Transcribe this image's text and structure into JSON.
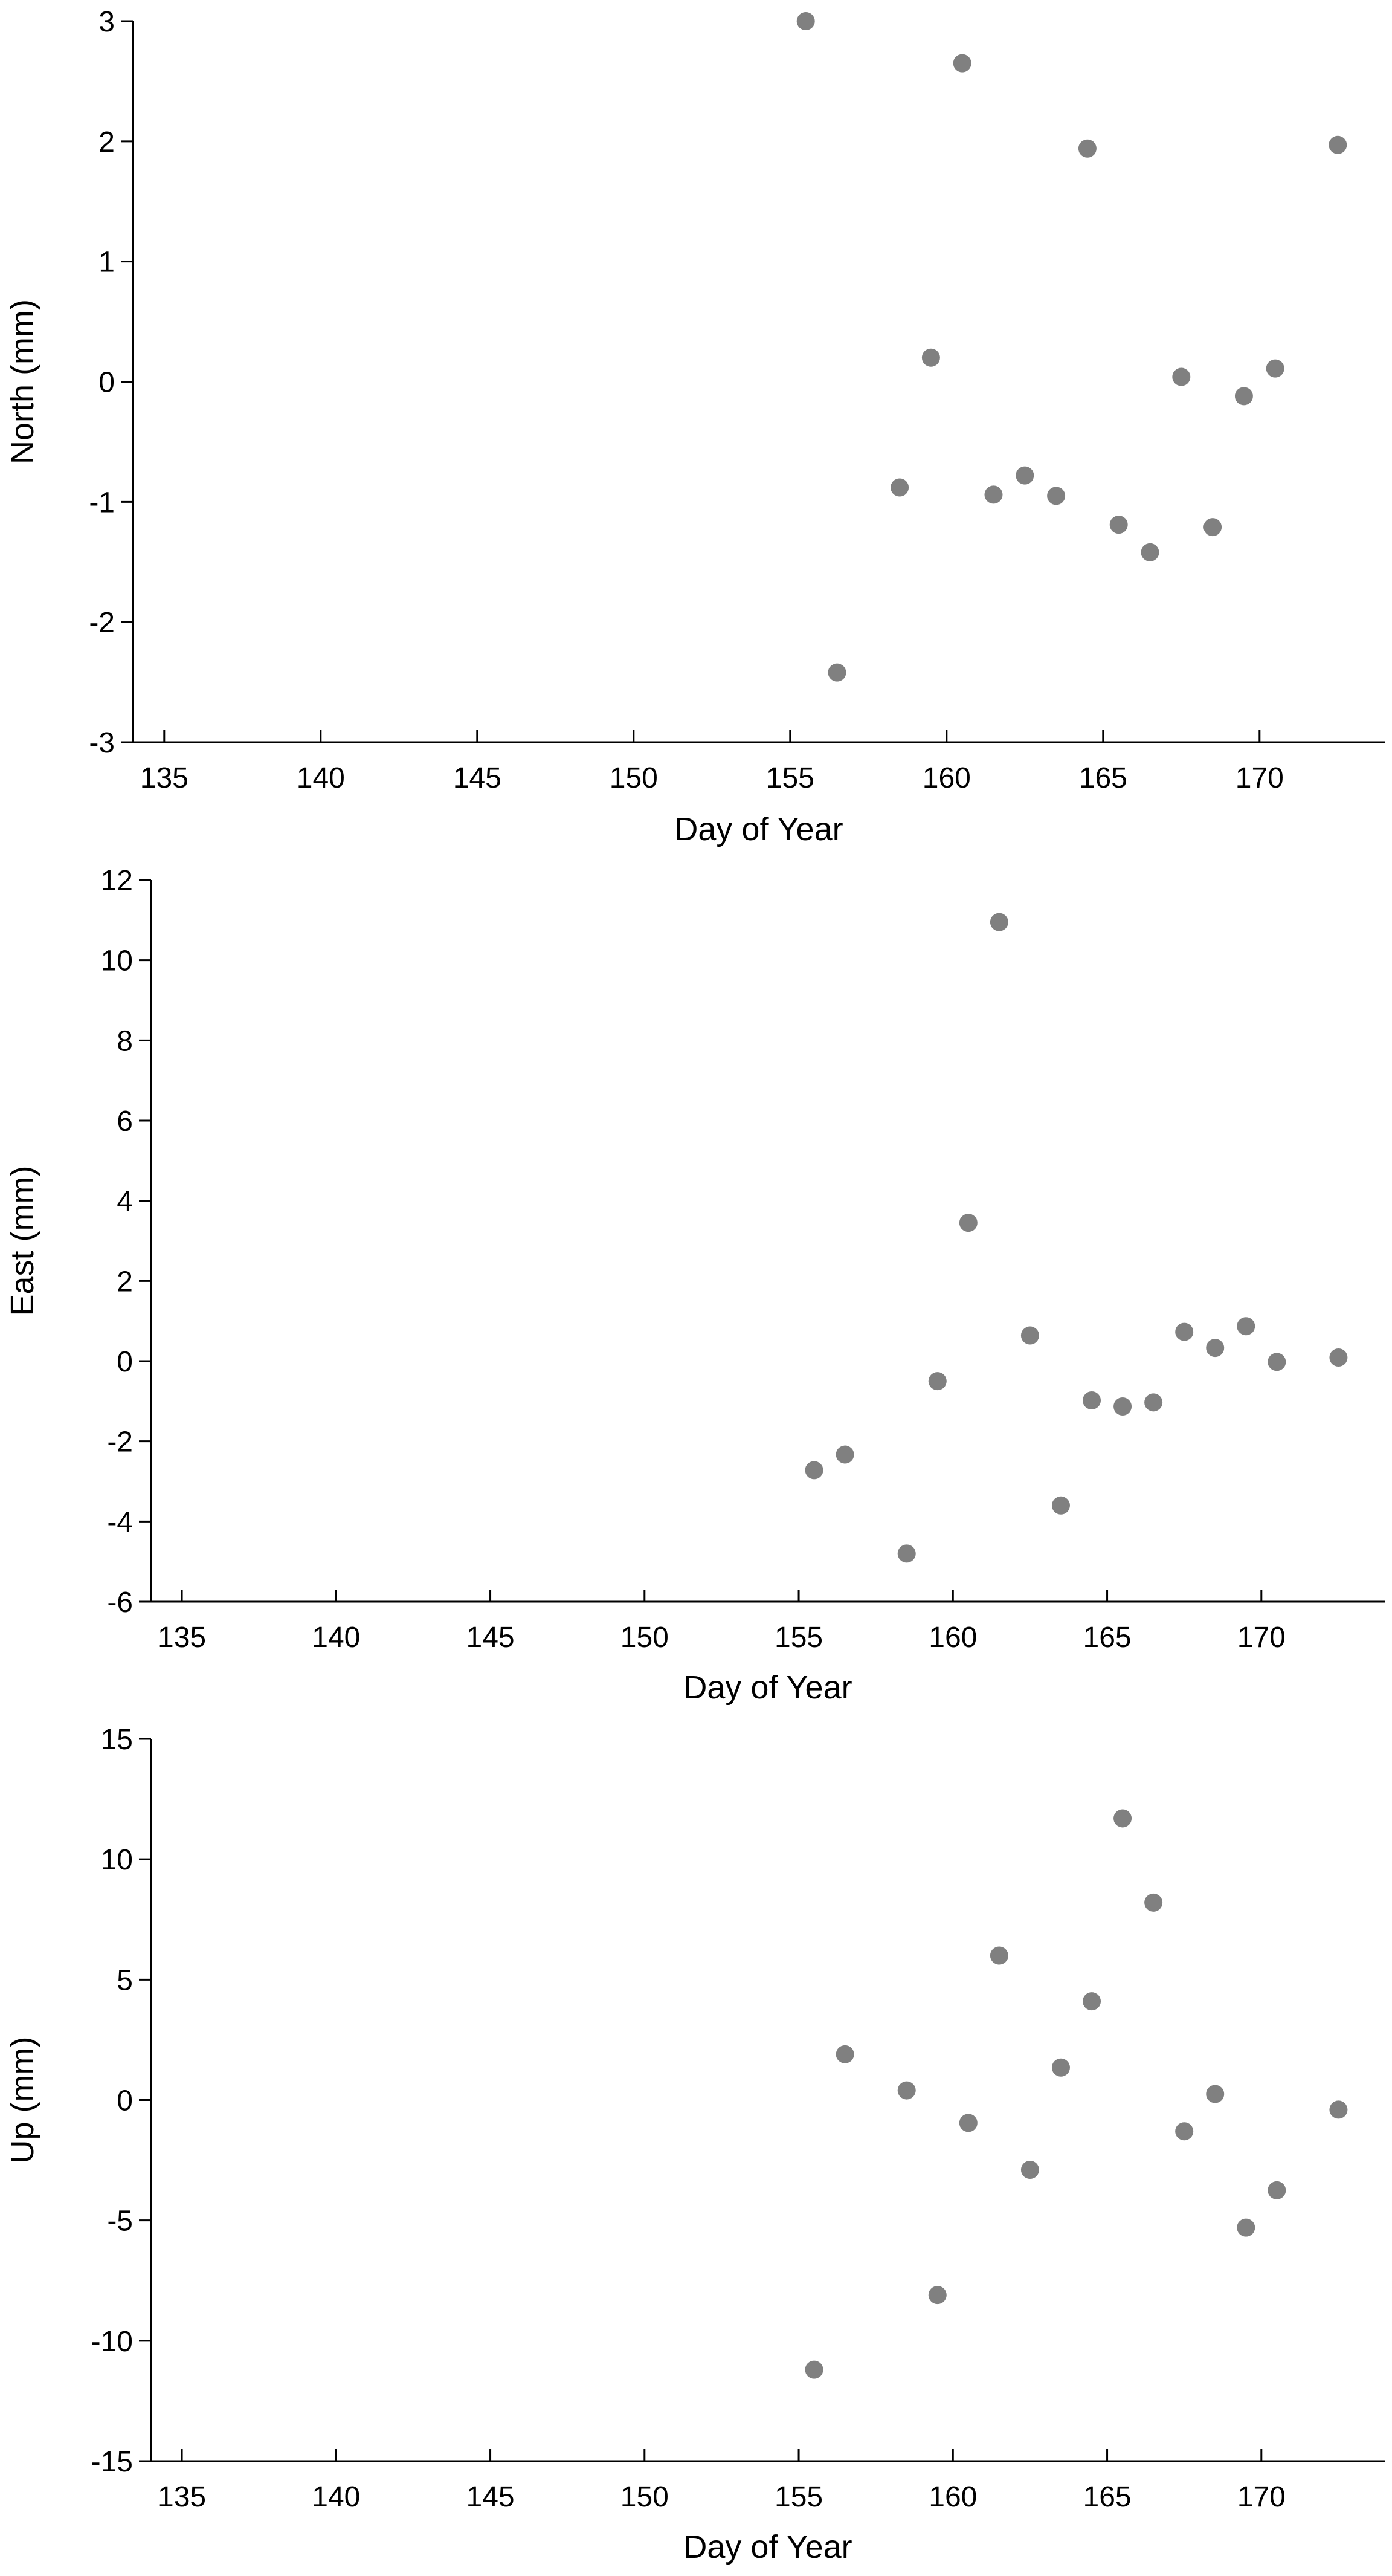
{
  "chart_data": [
    {
      "type": "scatter",
      "ylabel": "North (mm)",
      "xlabel": "Day of Year",
      "xlim": [
        134,
        174
      ],
      "ylim": [
        -3,
        3
      ],
      "xticks": [
        "135",
        "140",
        "145",
        "150",
        "155",
        "160",
        "165",
        "170"
      ],
      "xtick_values": [
        135,
        140,
        145,
        150,
        155,
        160,
        165,
        170
      ],
      "yticks": [
        "3",
        "2",
        "1",
        "0",
        "-1",
        "-2",
        "-3"
      ],
      "ytick_values": [
        3,
        2,
        1,
        0,
        -1,
        -2,
        -3
      ],
      "grid": false,
      "marker_color": "#808080",
      "points": [
        {
          "x": 155.5,
          "y": 3.0
        },
        {
          "x": 156.5,
          "y": -2.42
        },
        {
          "x": 158.5,
          "y": -0.88
        },
        {
          "x": 159.5,
          "y": 0.2
        },
        {
          "x": 160.5,
          "y": 2.65
        },
        {
          "x": 161.5,
          "y": -0.94
        },
        {
          "x": 162.5,
          "y": -0.78
        },
        {
          "x": 163.5,
          "y": -0.95
        },
        {
          "x": 164.5,
          "y": 1.94
        },
        {
          "x": 165.5,
          "y": -1.19
        },
        {
          "x": 166.5,
          "y": -1.42
        },
        {
          "x": 167.5,
          "y": 0.04
        },
        {
          "x": 168.5,
          "y": -1.21
        },
        {
          "x": 169.5,
          "y": -0.12
        },
        {
          "x": 170.5,
          "y": 0.11
        },
        {
          "x": 172.5,
          "y": 1.97
        }
      ]
    },
    {
      "type": "scatter",
      "ylabel": "East (mm)",
      "xlabel": "Day of Year",
      "xlim": [
        134,
        174
      ],
      "ylim": [
        -6,
        12
      ],
      "xticks": [
        "135",
        "140",
        "145",
        "150",
        "155",
        "160",
        "165",
        "170"
      ],
      "xtick_values": [
        135,
        140,
        145,
        150,
        155,
        160,
        165,
        170
      ],
      "yticks": [
        "12",
        "10",
        "8",
        "6",
        "4",
        "2",
        "0",
        "-2",
        "-4",
        "-6"
      ],
      "ytick_values": [
        12,
        10,
        8,
        6,
        4,
        2,
        0,
        -2,
        -4,
        -6
      ],
      "grid": false,
      "marker_color": "#808080",
      "points": [
        {
          "x": 155.5,
          "y": -2.72
        },
        {
          "x": 156.5,
          "y": -2.33
        },
        {
          "x": 158.5,
          "y": -4.8
        },
        {
          "x": 159.5,
          "y": -0.5
        },
        {
          "x": 160.5,
          "y": 3.45
        },
        {
          "x": 161.5,
          "y": 10.95
        },
        {
          "x": 162.5,
          "y": 0.64
        },
        {
          "x": 163.5,
          "y": -3.6
        },
        {
          "x": 164.5,
          "y": -0.98
        },
        {
          "x": 165.5,
          "y": -1.13
        },
        {
          "x": 166.5,
          "y": -1.03
        },
        {
          "x": 167.5,
          "y": 0.73
        },
        {
          "x": 168.5,
          "y": 0.33
        },
        {
          "x": 169.5,
          "y": 0.87
        },
        {
          "x": 170.5,
          "y": -0.02
        },
        {
          "x": 172.5,
          "y": 0.09
        }
      ]
    },
    {
      "type": "scatter",
      "ylabel": "Up (mm)",
      "xlabel": "Day of Year",
      "xlim": [
        134,
        174
      ],
      "ylim": [
        -15,
        15
      ],
      "xticks": [
        "135",
        "140",
        "145",
        "150",
        "155",
        "160",
        "165",
        "170"
      ],
      "xtick_values": [
        135,
        140,
        145,
        150,
        155,
        160,
        165,
        170
      ],
      "yticks": [
        "15",
        "10",
        "5",
        "0",
        "-5",
        "-10",
        "-15"
      ],
      "ytick_values": [
        15,
        10,
        5,
        0,
        -5,
        -10,
        -15
      ],
      "grid": false,
      "marker_color": "#808080",
      "points": [
        {
          "x": 155.5,
          "y": -11.2
        },
        {
          "x": 156.5,
          "y": 1.9
        },
        {
          "x": 158.5,
          "y": 0.4
        },
        {
          "x": 159.5,
          "y": -8.1
        },
        {
          "x": 160.5,
          "y": -0.95
        },
        {
          "x": 161.5,
          "y": 6.0
        },
        {
          "x": 162.5,
          "y": -2.9
        },
        {
          "x": 163.5,
          "y": 1.35
        },
        {
          "x": 164.5,
          "y": 4.1
        },
        {
          "x": 165.5,
          "y": 11.7
        },
        {
          "x": 166.5,
          "y": 8.2
        },
        {
          "x": 167.5,
          "y": -1.3
        },
        {
          "x": 168.5,
          "y": 0.25
        },
        {
          "x": 169.5,
          "y": -5.3
        },
        {
          "x": 170.5,
          "y": -3.75
        },
        {
          "x": 172.5,
          "y": -0.4
        }
      ]
    }
  ]
}
